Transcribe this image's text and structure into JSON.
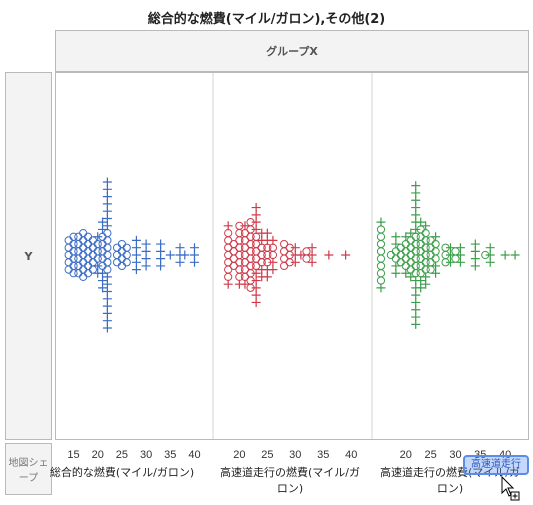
{
  "title": "総合的な燃費(マイル/ガロン),その他(2)",
  "group_header": "グループX",
  "y_header": "Y",
  "shape_zone": "地図シェープ",
  "drop_chip": "高速道走行",
  "colors": {
    "blue": "#3b6cc4",
    "red": "#cf3a4a",
    "green": "#3c9e4a"
  },
  "chart_data": [
    {
      "type": "scatter",
      "xlabel": "総合的な燃費(マイル/ガロン)",
      "color": "blue",
      "xlim": [
        12,
        43
      ],
      "ticks": [
        15,
        20,
        25,
        30,
        35,
        40
      ],
      "columns": [
        {
          "x": 14,
          "circles": 5,
          "plus": 0
        },
        {
          "x": 15,
          "circles": 6,
          "plus": 0
        },
        {
          "x": 16,
          "circles": 6,
          "plus": 0
        },
        {
          "x": 17,
          "circles": 7,
          "plus": 0
        },
        {
          "x": 18,
          "circles": 6,
          "plus": 0
        },
        {
          "x": 19,
          "circles": 5,
          "plus": 0
        },
        {
          "x": 20,
          "circles": 3,
          "plus": 3
        },
        {
          "x": 21,
          "circles": 5,
          "plus": 5
        },
        {
          "x": 22,
          "circles": 6,
          "plus": 15
        },
        {
          "x": 24,
          "circles": 3,
          "plus": 0
        },
        {
          "x": 25,
          "circles": 4,
          "plus": 0
        },
        {
          "x": 26,
          "circles": 3,
          "plus": 0
        },
        {
          "x": 28,
          "circles": 0,
          "plus": 5
        },
        {
          "x": 30,
          "circles": 0,
          "plus": 4
        },
        {
          "x": 33,
          "circles": 0,
          "plus": 4
        },
        {
          "x": 35,
          "circles": 0,
          "plus": 1
        },
        {
          "x": 37,
          "circles": 0,
          "plus": 3
        },
        {
          "x": 38,
          "circles": 0,
          "plus": 1
        },
        {
          "x": 40,
          "circles": 0,
          "plus": 3
        }
      ]
    },
    {
      "type": "scatter",
      "xlabel": "高速道走行の燃費(マイル/ガロン)",
      "color": "red",
      "xlim": [
        16,
        43
      ],
      "ticks": [
        20,
        25,
        30,
        35,
        40
      ],
      "columns": [
        {
          "x": 18,
          "circles": 7,
          "plus": 2
        },
        {
          "x": 19,
          "circles": 4,
          "plus": 0
        },
        {
          "x": 20,
          "circles": 8,
          "plus": 1
        },
        {
          "x": 21,
          "circles": 7,
          "plus": 2
        },
        {
          "x": 22,
          "circles": 10,
          "plus": 0
        },
        {
          "x": 23,
          "circles": 5,
          "plus": 9
        },
        {
          "x": 24,
          "circles": 3,
          "plus": 4
        },
        {
          "x": 25,
          "circles": 3,
          "plus": 4
        },
        {
          "x": 26,
          "circles": 2,
          "plus": 3
        },
        {
          "x": 28,
          "circles": 4,
          "plus": 0
        },
        {
          "x": 29,
          "circles": 3,
          "plus": 0
        },
        {
          "x": 30,
          "circles": 0,
          "plus": 3
        },
        {
          "x": 31,
          "circles": 0,
          "plus": 1
        },
        {
          "x": 32,
          "circles": 2,
          "plus": 0
        },
        {
          "x": 33,
          "circles": 0,
          "plus": 3
        },
        {
          "x": 36,
          "circles": 0,
          "plus": 1
        },
        {
          "x": 39,
          "circles": 0,
          "plus": 1
        }
      ]
    },
    {
      "type": "scatter",
      "xlabel": "高速道走行の燃費(マイル/ガロン)",
      "color": "green",
      "xlim": [
        14,
        44
      ],
      "ticks": [
        20,
        25,
        30,
        35,
        40
      ],
      "columns": [
        {
          "x": 15,
          "circles": 8,
          "plus": 2
        },
        {
          "x": 17,
          "circles": 1,
          "plus": 0
        },
        {
          "x": 18,
          "circles": 2,
          "plus": 4
        },
        {
          "x": 19,
          "circles": 3,
          "plus": 0
        },
        {
          "x": 20,
          "circles": 4,
          "plus": 2
        },
        {
          "x": 21,
          "circles": 5,
          "plus": 2
        },
        {
          "x": 22,
          "circles": 6,
          "plus": 14
        },
        {
          "x": 23,
          "circles": 7,
          "plus": 3
        },
        {
          "x": 24,
          "circles": 6,
          "plus": 3
        },
        {
          "x": 25,
          "circles": 5,
          "plus": 0
        },
        {
          "x": 26,
          "circles": 3,
          "plus": 3
        },
        {
          "x": 28,
          "circles": 3,
          "plus": 0
        },
        {
          "x": 29,
          "circles": 0,
          "plus": 3
        },
        {
          "x": 30,
          "circles": 2,
          "plus": 0
        },
        {
          "x": 31,
          "circles": 0,
          "plus": 3
        },
        {
          "x": 34,
          "circles": 0,
          "plus": 4
        },
        {
          "x": 36,
          "circles": 1,
          "plus": 0
        },
        {
          "x": 37,
          "circles": 0,
          "plus": 3
        },
        {
          "x": 40,
          "circles": 0,
          "plus": 1
        },
        {
          "x": 42,
          "circles": 0,
          "plus": 1
        }
      ]
    }
  ]
}
